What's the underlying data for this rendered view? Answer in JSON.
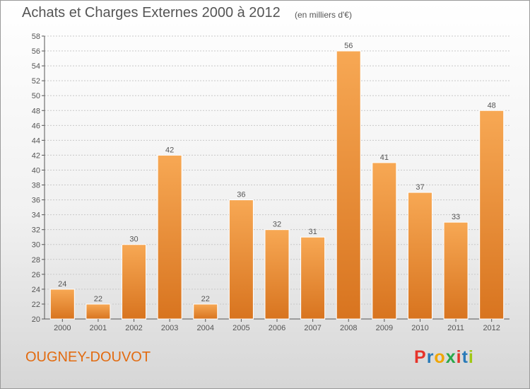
{
  "header": {
    "title": "Achats et Charges Externes 2000 à 2012",
    "subtitle": "(en milliers d'€)"
  },
  "footer": {
    "location": "OUGNEY-DOUVOT",
    "brand": "Proxiti",
    "brand_colors": [
      "#e6332a",
      "#2a7ab8",
      "#f0a500",
      "#2aa84a",
      "#e6332a",
      "#2a7ab8",
      "#a0c814"
    ]
  },
  "colors": {
    "bar_light": "#f7a854",
    "bar_dark": "#d8741f",
    "axis": "#555555",
    "grid": "#c8c8c8",
    "text": "#555555"
  },
  "chart_data": {
    "type": "bar",
    "title": "Achats et Charges Externes 2000 à 2012",
    "subtitle": "(en milliers d'€)",
    "categories": [
      "2000",
      "2001",
      "2002",
      "2003",
      "2004",
      "2005",
      "2006",
      "2007",
      "2008",
      "2009",
      "2010",
      "2011",
      "2012"
    ],
    "values": [
      24,
      22,
      30,
      42,
      22,
      36,
      32,
      31,
      56,
      41,
      37,
      33,
      48
    ],
    "ylim": [
      20,
      58
    ],
    "ytick_step": 2,
    "grid": true,
    "data_labels": true
  }
}
